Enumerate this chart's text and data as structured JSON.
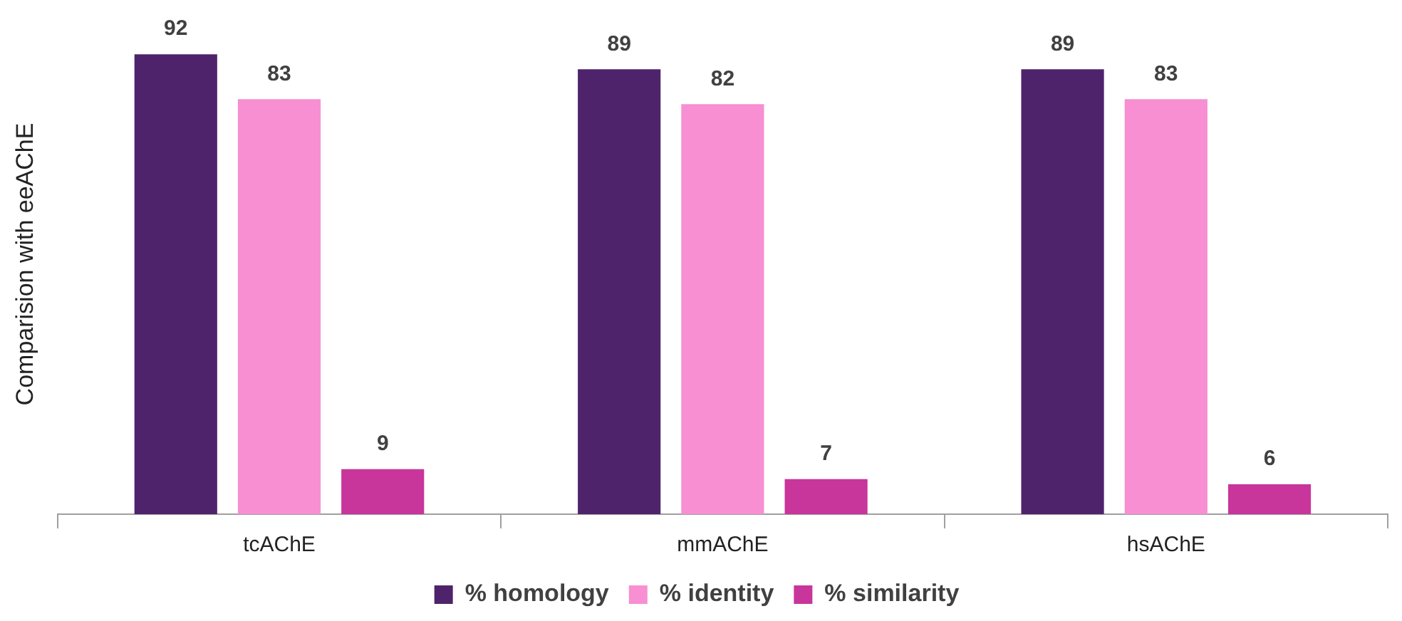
{
  "chart_data": {
    "type": "bar",
    "ylabel": "Comparision with eeAChE",
    "categories": [
      "tcAChE",
      "mmAChE",
      "hsAChE"
    ],
    "series": [
      {
        "name": "% homology",
        "color": "#4f236b",
        "values": [
          92,
          89,
          89
        ]
      },
      {
        "name": "% identity",
        "color": "#f78fd2",
        "values": [
          83,
          82,
          83
        ]
      },
      {
        "name": "% similarity",
        "color": "#c8359b",
        "values": [
          9,
          7,
          6
        ]
      }
    ],
    "data_labels": true,
    "legend": "bottom",
    "grid": false,
    "tick_labels": "x"
  }
}
